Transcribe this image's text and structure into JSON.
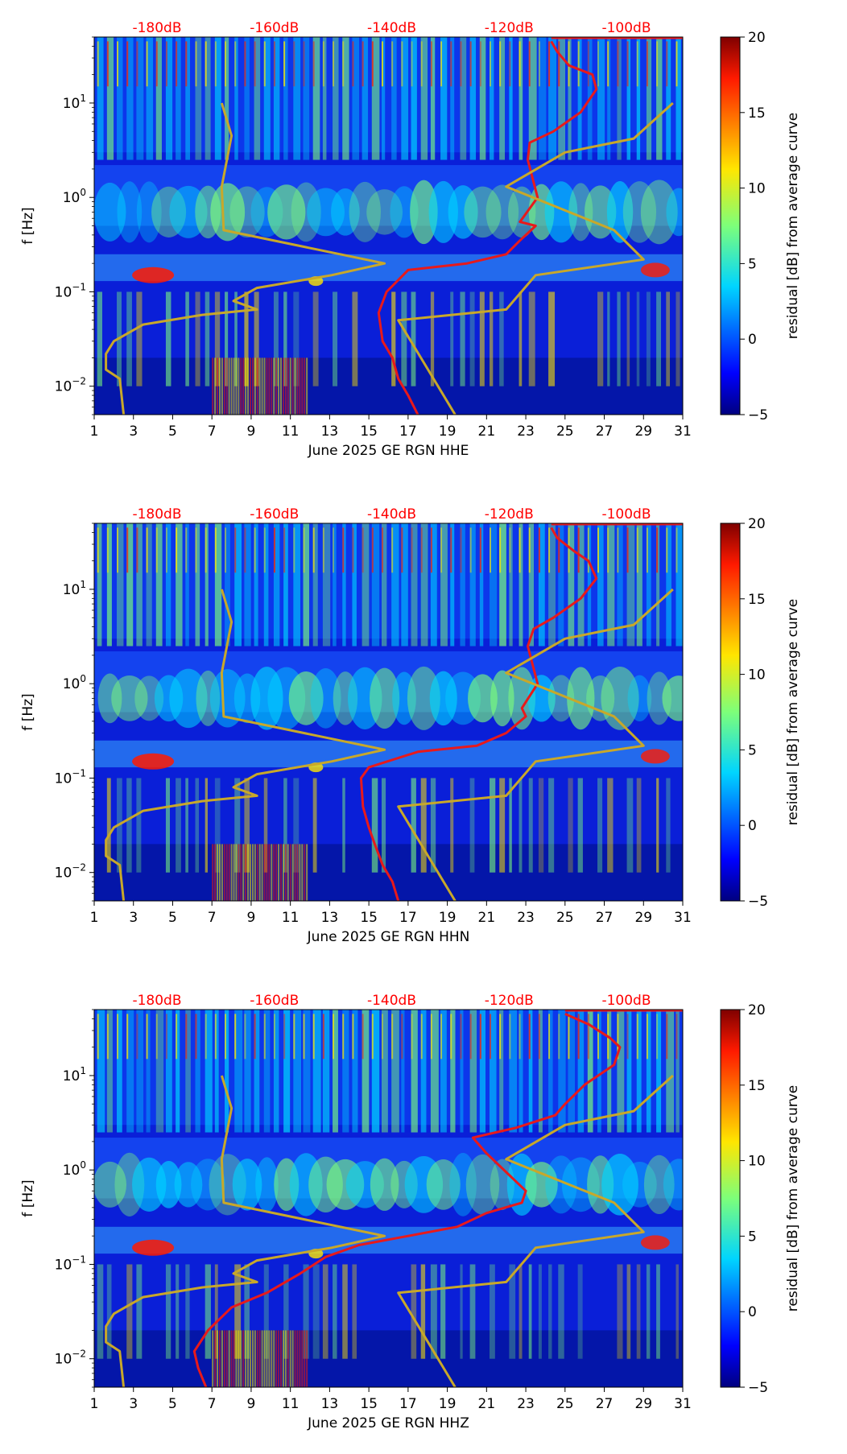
{
  "chart_data": [
    {
      "type": "heatmap",
      "title": "",
      "xlabel": "June 2025 GE RGN  HHE",
      "ylabel": "f [Hz]",
      "x_ticks": [
        "1",
        "3",
        "5",
        "7",
        "9",
        "11",
        "13",
        "15",
        "17",
        "19",
        "21",
        "23",
        "25",
        "27",
        "29",
        "31"
      ],
      "y_ticks": [
        "10^-2",
        "10^-1",
        "10^0",
        "10^1"
      ],
      "xlim": [
        1,
        31
      ],
      "ylim": [
        0.005,
        50
      ],
      "db_axis_labels": [
        "-180dB",
        "-160dB",
        "-140dB",
        "-120dB",
        "-100dB"
      ],
      "db_axis_values": [
        -180,
        -160,
        -140,
        -120,
        -100
      ],
      "colorbar_label": "residual [dB] from average curve",
      "colorbar_ticks": [
        "20",
        "15",
        "10",
        "5",
        "0",
        "−5"
      ],
      "colorbar_range": [
        -5,
        20
      ],
      "series": [
        {
          "name": "noise level (red)",
          "color": "#e8191b",
          "x_day": [
            24.3,
            24.6,
            25.2,
            26.4,
            26.6,
            25.8,
            24.4,
            23.2,
            23.1,
            23.6,
            22.7,
            23.5,
            22.7,
            22.0,
            20.0,
            17.0,
            15.9,
            15.5,
            15.7,
            16.2,
            16.5,
            17.0,
            17.5
          ],
          "f": [
            45,
            35,
            25,
            20,
            14,
            8,
            5,
            3.8,
            2.5,
            1.0,
            0.55,
            0.5,
            0.35,
            0.25,
            0.2,
            0.17,
            0.1,
            0.06,
            0.03,
            0.02,
            0.012,
            0.008,
            0.005
          ]
        },
        {
          "name": "reference model (olive)",
          "color": "#c8a82a",
          "x_day": [
            2.5,
            2.3,
            1.6,
            1.6,
            2.0,
            3.5,
            6.5,
            9.3,
            8.1,
            9.3,
            13.1,
            15.8,
            7.6,
            7.5,
            8.0,
            7.5
          ],
          "f": [
            0.005,
            0.012,
            0.015,
            0.022,
            0.03,
            0.045,
            0.057,
            0.065,
            0.08,
            0.11,
            0.15,
            0.2,
            0.45,
            1.3,
            4.5,
            10
          ]
        },
        {
          "name": "reference model (olive, right)",
          "color": "#c8a82a",
          "x_day": [
            19.4,
            16.5,
            22.0,
            23.5,
            29.0,
            27.5,
            22.0,
            25.0,
            28.5,
            30.5
          ],
          "f": [
            0.005,
            0.05,
            0.065,
            0.15,
            0.22,
            0.45,
            1.3,
            3.0,
            4.2,
            10
          ]
        }
      ]
    },
    {
      "type": "heatmap",
      "title": "",
      "xlabel": "June 2025 GE RGN  HHN",
      "ylabel": "f [Hz]",
      "x_ticks": [
        "1",
        "3",
        "5",
        "7",
        "9",
        "11",
        "13",
        "15",
        "17",
        "19",
        "21",
        "23",
        "25",
        "27",
        "29",
        "31"
      ],
      "y_ticks": [
        "10^-2",
        "10^-1",
        "10^0",
        "10^1"
      ],
      "xlim": [
        1,
        31
      ],
      "ylim": [
        0.005,
        50
      ],
      "db_axis_labels": [
        "-180dB",
        "-160dB",
        "-140dB",
        "-120dB",
        "-100dB"
      ],
      "db_axis_values": [
        -180,
        -160,
        -140,
        -120,
        -100
      ],
      "colorbar_label": "residual [dB] from average curve",
      "colorbar_ticks": [
        "20",
        "15",
        "10",
        "5",
        "0",
        "−5"
      ],
      "colorbar_range": [
        -5,
        20
      ],
      "series": [
        {
          "name": "noise level (red)",
          "color": "#e8191b",
          "x_day": [
            24.3,
            24.6,
            25.5,
            26.2,
            26.6,
            25.8,
            24.4,
            23.4,
            23.1,
            23.6,
            22.8,
            23.0,
            22.0,
            20.5,
            17.5,
            15.0,
            14.6,
            14.7,
            15.0,
            15.3,
            15.7,
            16.2,
            16.5
          ],
          "f": [
            45,
            35,
            25,
            20,
            13,
            8,
            5,
            3.8,
            2.5,
            1.0,
            0.55,
            0.45,
            0.3,
            0.22,
            0.19,
            0.13,
            0.1,
            0.05,
            0.03,
            0.02,
            0.012,
            0.008,
            0.005
          ]
        },
        {
          "name": "reference model (olive)",
          "color": "#c8a82a",
          "x_day": [
            2.5,
            2.3,
            1.6,
            1.6,
            2.0,
            3.5,
            6.5,
            9.3,
            8.1,
            9.3,
            13.1,
            15.8,
            7.6,
            7.5,
            8.0,
            7.5
          ],
          "f": [
            0.005,
            0.012,
            0.015,
            0.022,
            0.03,
            0.045,
            0.057,
            0.065,
            0.08,
            0.11,
            0.15,
            0.2,
            0.45,
            1.3,
            4.5,
            10
          ]
        },
        {
          "name": "reference model (olive, right)",
          "color": "#c8a82a",
          "x_day": [
            19.4,
            16.5,
            22.0,
            23.5,
            29.0,
            27.5,
            22.0,
            25.0,
            28.5,
            30.5
          ],
          "f": [
            0.005,
            0.05,
            0.065,
            0.15,
            0.22,
            0.45,
            1.3,
            3.0,
            4.2,
            10
          ]
        }
      ]
    },
    {
      "type": "heatmap",
      "title": "",
      "xlabel": "June 2025 GE RGN  HHZ",
      "ylabel": "f [Hz]",
      "x_ticks": [
        "1",
        "3",
        "5",
        "7",
        "9",
        "11",
        "13",
        "15",
        "17",
        "19",
        "21",
        "23",
        "25",
        "27",
        "29",
        "31"
      ],
      "y_ticks": [
        "10^-2",
        "10^-1",
        "10^0",
        "10^1"
      ],
      "xlim": [
        1,
        31
      ],
      "ylim": [
        0.005,
        50
      ],
      "db_axis_labels": [
        "-180dB",
        "-160dB",
        "-140dB",
        "-120dB",
        "-100dB"
      ],
      "db_axis_values": [
        -180,
        -160,
        -140,
        -120,
        -100
      ],
      "colorbar_label": "residual [dB] from average curve",
      "colorbar_ticks": [
        "20",
        "15",
        "10",
        "5",
        "0",
        "−5"
      ],
      "colorbar_range": [
        -5,
        20
      ],
      "series": [
        {
          "name": "noise level (red)",
          "color": "#e8191b",
          "x_day": [
            25.0,
            26.2,
            27.3,
            27.8,
            27.5,
            26.0,
            25.0,
            24.5,
            22.5,
            20.3,
            21.0,
            23.0,
            22.8,
            21.0,
            19.5,
            17.0,
            14.5,
            12.8,
            11.5,
            9.8,
            8.0,
            6.8,
            6.1,
            6.3,
            6.7
          ],
          "f": [
            45,
            35,
            25,
            20,
            13,
            8,
            5,
            3.8,
            2.8,
            2.2,
            1.5,
            0.6,
            0.45,
            0.35,
            0.25,
            0.2,
            0.16,
            0.12,
            0.08,
            0.05,
            0.035,
            0.02,
            0.012,
            0.008,
            0.005
          ]
        },
        {
          "name": "reference model (olive)",
          "color": "#c8a82a",
          "x_day": [
            2.5,
            2.3,
            1.6,
            1.6,
            2.0,
            3.5,
            6.5,
            9.3,
            8.1,
            9.3,
            13.1,
            15.8,
            7.6,
            7.5,
            8.0,
            7.5
          ],
          "f": [
            0.005,
            0.012,
            0.015,
            0.022,
            0.03,
            0.045,
            0.057,
            0.065,
            0.08,
            0.11,
            0.15,
            0.2,
            0.45,
            1.3,
            4.5,
            10
          ]
        },
        {
          "name": "reference model (olive, right)",
          "color": "#c8a82a",
          "x_day": [
            19.4,
            16.5,
            22.0,
            23.5,
            29.0,
            27.5,
            22.0,
            25.0,
            28.5,
            30.5
          ],
          "f": [
            0.005,
            0.05,
            0.065,
            0.15,
            0.22,
            0.45,
            1.3,
            3.0,
            4.2,
            10
          ]
        }
      ]
    }
  ]
}
